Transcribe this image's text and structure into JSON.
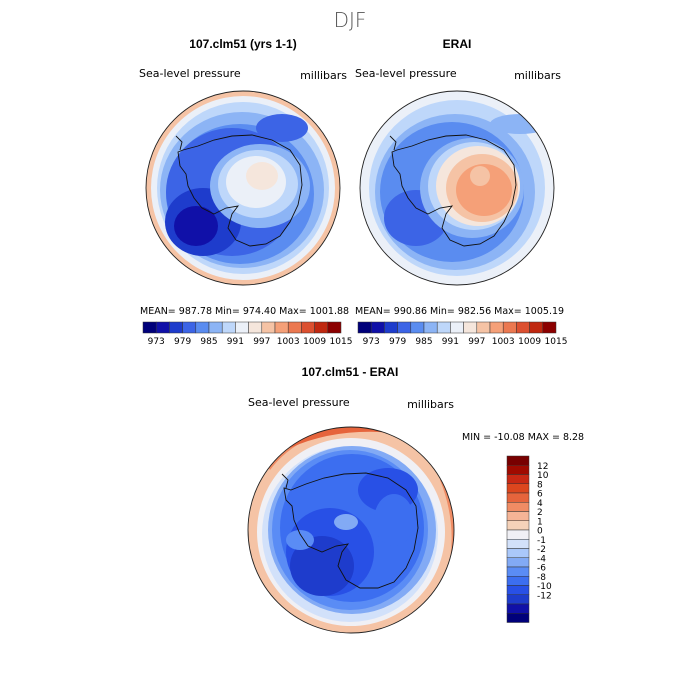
{
  "figure": {
    "title": "DJF",
    "panels": [
      {
        "id": "model",
        "title": "107.clm51 (yrs 1-1)",
        "left_label": "Sea-level pressure",
        "right_label": "millibars",
        "stats": "MEAN= 987.78   Min= 974.40   Max= 1001.88"
      },
      {
        "id": "obs",
        "title": "ERAI",
        "left_label": "Sea-level pressure",
        "right_label": "millibars",
        "stats": "MEAN= 990.86   Min= 982.56   Max= 1005.19"
      }
    ],
    "diff_panel": {
      "title": "107.clm51 - ERAI",
      "left_label": "Sea-level pressure",
      "right_label": "millibars",
      "minmax": "MIN = -10.08 MAX =   8.28"
    }
  },
  "colors": {
    "abs_scale": [
      "#00007a",
      "#1010a8",
      "#1e3ccc",
      "#3c64e6",
      "#5a8cf0",
      "#8cb4f5",
      "#bed7fa",
      "#ebf0f8",
      "#f5e6dc",
      "#f5c3a5",
      "#f5a078",
      "#eb7850",
      "#dc5030",
      "#c02810",
      "#8c0000"
    ],
    "diff_scale": [
      "#00007a",
      "#1010a8",
      "#1e3ccc",
      "#2850e6",
      "#3c6ef0",
      "#5a8cf5",
      "#82aaf5",
      "#aac8fa",
      "#d2e1fa",
      "#f0f0f5",
      "#f5d2b9",
      "#f5b496",
      "#f08c64",
      "#e6643c",
      "#dc461e",
      "#c82814",
      "#a00a00",
      "#780000"
    ],
    "coast": "#111111"
  },
  "legend": {
    "abs_ticks": [
      "973",
      "979",
      "985",
      "991",
      "997",
      "1003",
      "1009",
      "1015"
    ],
    "diff_ticks": [
      "12",
      "10",
      "8",
      "6",
      "4",
      "2",
      "1",
      "0",
      "-1",
      "-2",
      "-4",
      "-6",
      "-8",
      "-10",
      "-12"
    ]
  }
}
